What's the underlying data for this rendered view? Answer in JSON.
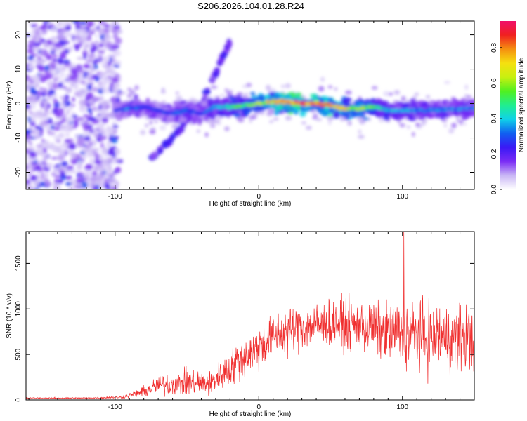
{
  "title": "S206.2026.104.01.28.R24",
  "chart_data": [
    {
      "type": "heatmap",
      "title": "S206.2026.104.01.28.R24",
      "xlabel": "Height of straight line (km)",
      "ylabel": "Frequency (Hz)",
      "xlim": [
        -162,
        150
      ],
      "ylim": [
        -25,
        24
      ],
      "xticks": [
        -100,
        0,
        100
      ],
      "yticks": [
        -20,
        -10,
        0,
        10,
        20
      ],
      "colorbar": {
        "label": "Normalized spectral amplitude",
        "range": [
          0,
          0.95
        ],
        "ticks": [
          0.0,
          0.2,
          0.4,
          0.6,
          0.8
        ],
        "colors": [
          "#ffffff",
          "#c9b6f5",
          "#7a2cf5",
          "#3a18f5",
          "#1060f0",
          "#10d2e8",
          "#20ee90",
          "#50f020",
          "#c8f010",
          "#f5e010",
          "#f59010",
          "#f02020",
          "#f0106a"
        ]
      },
      "ridge": {
        "x": [
          -100,
          -90,
          -80,
          -70,
          -60,
          -50,
          -40,
          -30,
          -20,
          -10,
          0,
          10,
          20,
          30,
          40,
          50,
          60,
          70,
          80,
          90,
          100,
          110,
          120,
          130,
          140,
          150
        ],
        "y": [
          -2,
          -1.5,
          -1,
          -2,
          -3,
          -2,
          -3,
          -1,
          -1,
          -0.5,
          0,
          0.5,
          0.5,
          0,
          0,
          -0.5,
          -1.5,
          -1.5,
          -1,
          -2,
          -2,
          -2,
          -2,
          -1.5,
          -1.5,
          -1.5
        ],
        "amplitude": [
          0.25,
          0.35,
          0.3,
          0.3,
          0.3,
          0.35,
          0.3,
          0.4,
          0.5,
          0.55,
          0.65,
          0.75,
          0.9,
          0.9,
          0.85,
          0.8,
          0.7,
          0.65,
          0.55,
          0.4,
          0.4,
          0.35,
          0.35,
          0.35,
          0.35,
          0.35
        ]
      },
      "diagonal_feature": {
        "x": [
          -75,
          -60,
          -40,
          -20
        ],
        "y": [
          -16,
          -10,
          0,
          18
        ]
      },
      "noise_region_x": [
        -162,
        -97
      ]
    },
    {
      "type": "line",
      "xlabel": "Height of straight line (km)",
      "ylabel": "SNR (10 * v/v)",
      "xlim": [
        -162,
        150
      ],
      "ylim": [
        0,
        1850
      ],
      "xticks": [
        -100,
        0,
        100
      ],
      "yticks": [
        0,
        500,
        1000,
        1500
      ],
      "color": "#f03030",
      "envelope": {
        "x": [
          -162,
          -120,
          -95,
          -80,
          -70,
          -55,
          -45,
          -35,
          -25,
          -15,
          -5,
          5,
          15,
          25,
          35,
          45,
          55,
          65,
          75,
          85,
          95,
          105,
          115,
          125,
          135,
          150
        ],
        "mean": [
          20,
          20,
          30,
          90,
          160,
          180,
          200,
          170,
          280,
          420,
          520,
          640,
          720,
          780,
          810,
          830,
          840,
          820,
          800,
          760,
          730,
          710,
          700,
          690,
          690,
          700
        ],
        "spread": [
          10,
          12,
          20,
          90,
          160,
          200,
          220,
          200,
          250,
          320,
          350,
          380,
          380,
          380,
          380,
          380,
          380,
          400,
          420,
          450,
          520,
          550,
          560,
          560,
          560,
          560
        ]
      },
      "peak": {
        "x": 101,
        "y": 1850
      }
    }
  ]
}
